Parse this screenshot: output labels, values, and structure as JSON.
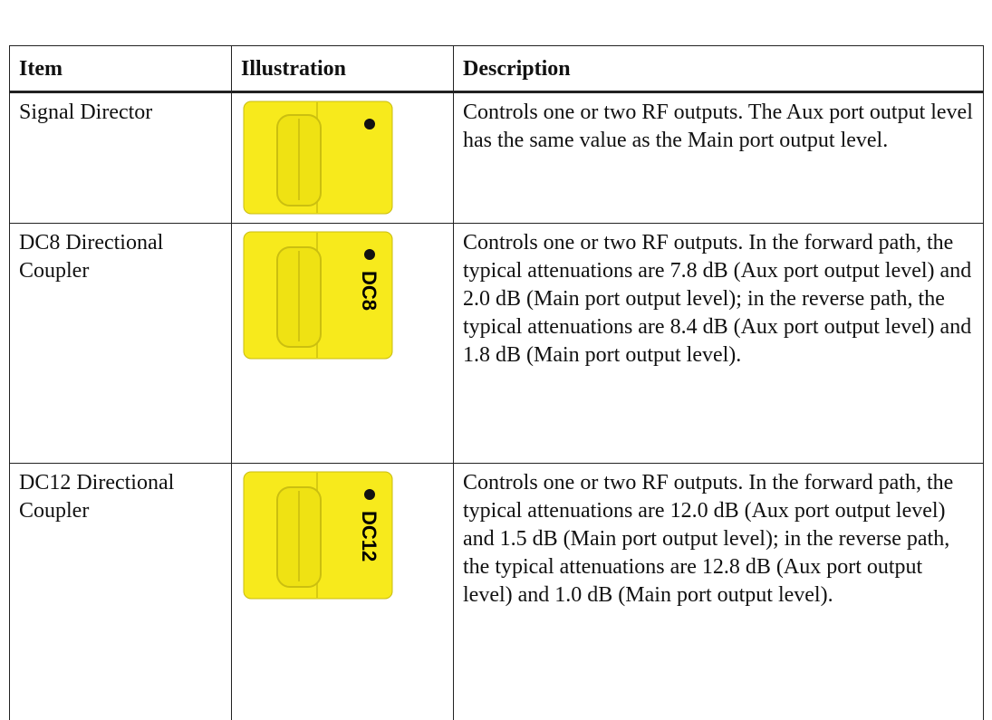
{
  "table": {
    "header": [
      "Item",
      "Illustration",
      "Description"
    ],
    "rows": [
      {
        "item": "Signal Director",
        "description": "Controls one or two RF outputs. The Aux port output level has the same value as the Main port output level."
      },
      {
        "item": "DC8 Directional Coupler",
        "illustration_label": "DC8",
        "description": "Controls one or two RF outputs. In the forward path, the typical attenuations are 7.8 dB (Aux port output level) and 2.0 dB (Main port output level); in the reverse path, the typical attenuations are 8.4 dB (Aux port output level) and 1.8 dB (Main port output level)."
      },
      {
        "item": "DC12 Directional Coupler",
        "illustration_label": "DC12",
        "description": "Controls one or two RF outputs. In the forward path, the typical attenuations are 12.0 dB (Aux port output level) and 1.5 dB (Main port output level); in the reverse path, the typical attenuations are 12.8 dB (Aux port output level) and 1.0 dB (Main port output level)."
      }
    ]
  }
}
